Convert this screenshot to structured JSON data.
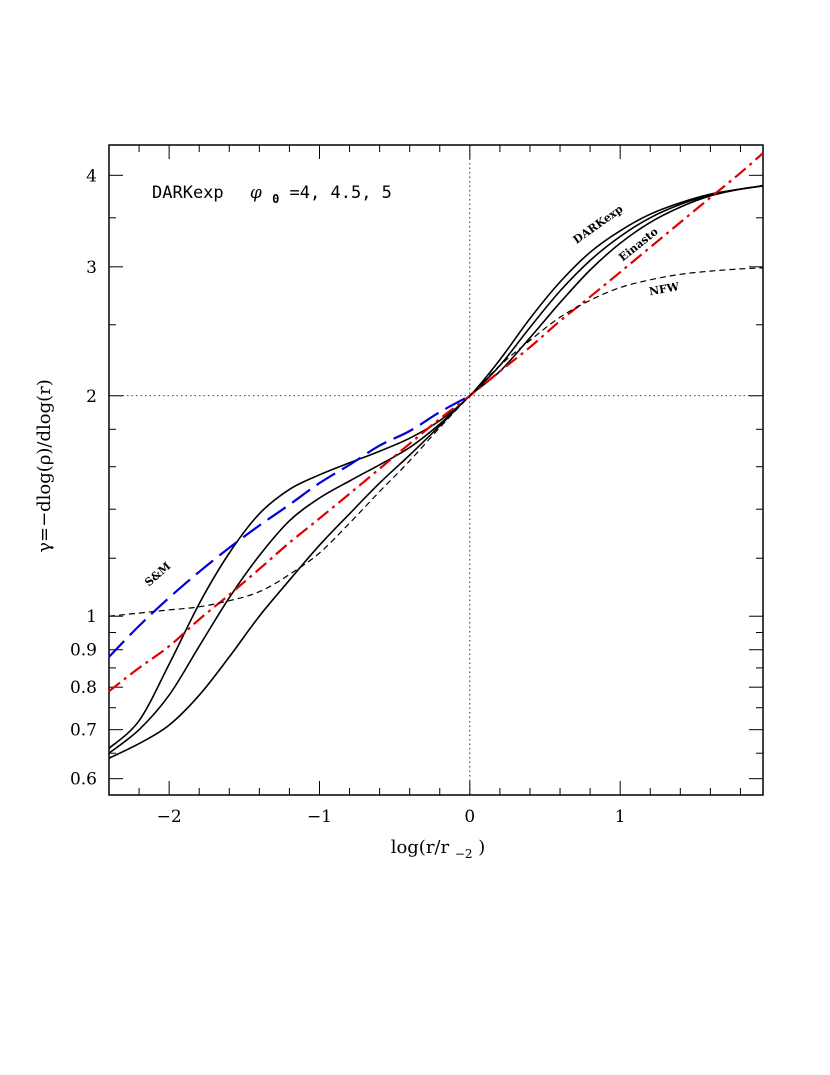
{
  "chart_data": {
    "type": "line",
    "title": "",
    "xlabel": "log(r/r",
    "xlabel_sub": "−2",
    "xlabel_close": ")",
    "ylabel": "γ=−dlog(ρ)/dlog(r)",
    "xlim": [
      -2.4,
      1.95
    ],
    "ylim": [
      0.57,
      4.4
    ],
    "yscale": "log",
    "x_ticks": [
      -2,
      -1,
      0,
      1
    ],
    "x_tick_labels": [
      "−2",
      "−1",
      "0",
      "1"
    ],
    "y_ticks": [
      0.6,
      0.7,
      0.8,
      0.9,
      1,
      2,
      3,
      4
    ],
    "y_tick_labels": [
      "0.6",
      "0.7",
      "0.8",
      "0.9",
      "1",
      "2",
      "3",
      "4"
    ],
    "reference_lines": {
      "x": 0,
      "y": 2
    },
    "annotation": {
      "prefix": "DARKexp",
      "param_symbol": "φ",
      "param_sub": "0",
      "param_values": "=4, 4.5, 5"
    },
    "series": [
      {
        "label": "DARKexp",
        "style": "solid",
        "color": "#000000",
        "x": [
          -2.4,
          -2.2,
          -2.0,
          -1.8,
          -1.6,
          -1.4,
          -1.2,
          -1.0,
          -0.8,
          -0.6,
          -0.4,
          -0.2,
          0.0,
          0.2,
          0.4,
          0.6,
          0.8,
          1.0,
          1.2,
          1.4,
          1.6,
          1.8,
          1.95
        ],
        "y": [
          0.66,
          0.72,
          0.86,
          1.04,
          1.22,
          1.38,
          1.49,
          1.56,
          1.62,
          1.68,
          1.75,
          1.85,
          2.0,
          2.24,
          2.55,
          2.86,
          3.14,
          3.36,
          3.54,
          3.67,
          3.77,
          3.83,
          3.87
        ]
      },
      {
        "label": "",
        "style": "solid",
        "color": "#000000",
        "x": [
          -2.4,
          -2.2,
          -2.0,
          -1.8,
          -1.6,
          -1.4,
          -1.2,
          -1.0,
          -0.8,
          -0.6,
          -0.4,
          -0.2,
          0.0,
          0.2,
          0.4,
          0.6,
          0.8,
          1.0,
          1.2,
          1.4,
          1.6,
          1.8,
          1.95
        ],
        "y": [
          0.65,
          0.7,
          0.78,
          0.91,
          1.06,
          1.21,
          1.35,
          1.45,
          1.53,
          1.61,
          1.7,
          1.83,
          2.0,
          2.2,
          2.48,
          2.78,
          3.06,
          3.3,
          3.5,
          3.65,
          3.76,
          3.83,
          3.87
        ]
      },
      {
        "label": "",
        "style": "solid",
        "color": "#000000",
        "x": [
          -2.4,
          -2.2,
          -2.0,
          -1.8,
          -1.6,
          -1.4,
          -1.2,
          -1.0,
          -0.8,
          -0.6,
          -0.4,
          -0.2,
          0.0,
          0.2,
          0.4,
          0.6,
          0.8,
          1.0,
          1.2,
          1.4,
          1.6,
          1.8,
          1.95
        ],
        "y": [
          0.64,
          0.67,
          0.71,
          0.78,
          0.88,
          1.0,
          1.12,
          1.25,
          1.38,
          1.52,
          1.66,
          1.82,
          2.0,
          2.16,
          2.4,
          2.68,
          2.97,
          3.23,
          3.45,
          3.62,
          3.75,
          3.83,
          3.87
        ]
      },
      {
        "label": "Einasto",
        "style": "dashdot",
        "color": "#e00000",
        "x": [
          -2.4,
          -2.2,
          -2.0,
          -1.8,
          -1.6,
          -1.4,
          -1.2,
          -1.0,
          -0.8,
          -0.6,
          -0.4,
          -0.2,
          0.0,
          0.2,
          0.4,
          0.6,
          0.8,
          1.0,
          1.2,
          1.4,
          1.6,
          1.8,
          1.95
        ],
        "y": [
          0.79,
          0.85,
          0.91,
          0.99,
          1.07,
          1.16,
          1.26,
          1.36,
          1.47,
          1.59,
          1.72,
          1.86,
          2.0,
          2.16,
          2.33,
          2.53,
          2.73,
          2.95,
          3.19,
          3.45,
          3.73,
          4.03,
          4.29
        ]
      },
      {
        "label": "S&M",
        "style": "longdash",
        "color": "#0000d8",
        "x": [
          -2.4,
          -2.2,
          -2.0,
          -1.8,
          -1.6,
          -1.4,
          -1.2,
          -1.0,
          -0.8,
          -0.6,
          -0.4,
          -0.2,
          0.0
        ],
        "y": [
          0.88,
          0.97,
          1.06,
          1.15,
          1.24,
          1.33,
          1.42,
          1.52,
          1.61,
          1.71,
          1.79,
          1.9,
          2.0
        ]
      },
      {
        "label": "NFW",
        "style": "shortdash",
        "color": "#000000",
        "x": [
          -2.4,
          -2.2,
          -2.0,
          -1.8,
          -1.6,
          -1.4,
          -1.2,
          -1.0,
          -0.8,
          -0.6,
          -0.4,
          -0.2,
          0.0,
          0.2,
          0.4,
          0.6,
          0.8,
          1.0,
          1.2,
          1.4,
          1.6,
          1.8,
          1.95
        ],
        "y": [
          1.0,
          1.01,
          1.02,
          1.03,
          1.05,
          1.08,
          1.14,
          1.22,
          1.34,
          1.48,
          1.63,
          1.81,
          2.0,
          2.2,
          2.38,
          2.56,
          2.7,
          2.81,
          2.88,
          2.93,
          2.96,
          2.98,
          2.99
        ]
      }
    ],
    "curve_labels": [
      {
        "text": "DARKexp",
        "series": 0
      },
      {
        "text": "Einasto",
        "series": 3
      },
      {
        "text": "NFW",
        "series": 5
      },
      {
        "text": "S&M",
        "series": 4
      }
    ]
  }
}
